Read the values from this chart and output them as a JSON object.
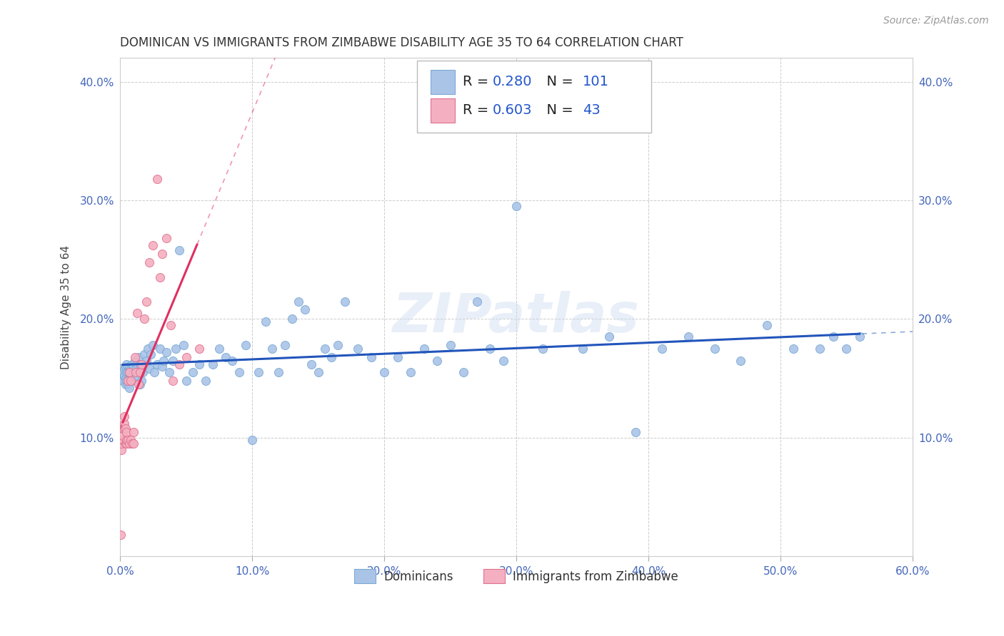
{
  "title": "DOMINICAN VS IMMIGRANTS FROM ZIMBABWE DISABILITY AGE 35 TO 64 CORRELATION CHART",
  "source": "Source: ZipAtlas.com",
  "ylabel": "Disability Age 35 to 64",
  "xlim": [
    0.0,
    0.6
  ],
  "ylim": [
    0.0,
    0.42
  ],
  "xticks": [
    0.0,
    0.1,
    0.2,
    0.3,
    0.4,
    0.5,
    0.6
  ],
  "yticks": [
    0.0,
    0.1,
    0.2,
    0.3,
    0.4
  ],
  "xticklabels": [
    "0.0%",
    "10.0%",
    "20.0%",
    "30.0%",
    "40.0%",
    "50.0%",
    "60.0%"
  ],
  "yticklabels": [
    "",
    "10.0%",
    "20.0%",
    "30.0%",
    "40.0%"
  ],
  "series": [
    {
      "name": "Dominicans",
      "R": 0.28,
      "N": 101,
      "color": "#aac4e8",
      "edge_color": "#7aaad4",
      "trend_color": "#2255bb",
      "x": [
        0.001,
        0.002,
        0.002,
        0.003,
        0.003,
        0.004,
        0.004,
        0.004,
        0.005,
        0.005,
        0.005,
        0.006,
        0.006,
        0.007,
        0.007,
        0.007,
        0.008,
        0.008,
        0.009,
        0.009,
        0.01,
        0.01,
        0.011,
        0.011,
        0.012,
        0.013,
        0.014,
        0.015,
        0.015,
        0.016,
        0.017,
        0.018,
        0.019,
        0.02,
        0.021,
        0.022,
        0.023,
        0.025,
        0.026,
        0.028,
        0.03,
        0.032,
        0.033,
        0.035,
        0.037,
        0.04,
        0.042,
        0.045,
        0.048,
        0.05,
        0.055,
        0.06,
        0.065,
        0.07,
        0.075,
        0.08,
        0.085,
        0.09,
        0.095,
        0.1,
        0.105,
        0.11,
        0.115,
        0.12,
        0.125,
        0.13,
        0.135,
        0.14,
        0.145,
        0.15,
        0.155,
        0.16,
        0.165,
        0.17,
        0.18,
        0.19,
        0.2,
        0.21,
        0.22,
        0.23,
        0.24,
        0.25,
        0.26,
        0.27,
        0.28,
        0.29,
        0.3,
        0.32,
        0.35,
        0.37,
        0.39,
        0.41,
        0.43,
        0.45,
        0.47,
        0.49,
        0.51,
        0.53,
        0.54,
        0.55,
        0.56
      ],
      "y": [
        0.15,
        0.148,
        0.155,
        0.152,
        0.158,
        0.145,
        0.15,
        0.16,
        0.148,
        0.155,
        0.162,
        0.145,
        0.155,
        0.142,
        0.155,
        0.16,
        0.148,
        0.158,
        0.148,
        0.162,
        0.155,
        0.16,
        0.152,
        0.165,
        0.158,
        0.162,
        0.168,
        0.145,
        0.162,
        0.148,
        0.155,
        0.17,
        0.162,
        0.165,
        0.175,
        0.158,
        0.17,
        0.178,
        0.155,
        0.162,
        0.175,
        0.16,
        0.165,
        0.172,
        0.155,
        0.165,
        0.175,
        0.258,
        0.178,
        0.148,
        0.155,
        0.162,
        0.148,
        0.162,
        0.175,
        0.168,
        0.165,
        0.155,
        0.178,
        0.098,
        0.155,
        0.198,
        0.175,
        0.155,
        0.178,
        0.2,
        0.215,
        0.208,
        0.162,
        0.155,
        0.175,
        0.168,
        0.178,
        0.215,
        0.175,
        0.168,
        0.155,
        0.168,
        0.155,
        0.175,
        0.165,
        0.178,
        0.155,
        0.215,
        0.175,
        0.165,
        0.295,
        0.175,
        0.175,
        0.185,
        0.105,
        0.175,
        0.185,
        0.175,
        0.165,
        0.195,
        0.175,
        0.175,
        0.185,
        0.175,
        0.185
      ]
    },
    {
      "name": "Immigrants from Zimbabwe",
      "R": 0.603,
      "N": 43,
      "color": "#f4b0c0",
      "edge_color": "#e07090",
      "trend_color": "#e03060",
      "x": [
        0.0005,
        0.001,
        0.001,
        0.0015,
        0.002,
        0.002,
        0.002,
        0.003,
        0.003,
        0.003,
        0.004,
        0.004,
        0.005,
        0.005,
        0.005,
        0.006,
        0.006,
        0.007,
        0.007,
        0.008,
        0.008,
        0.009,
        0.01,
        0.01,
        0.011,
        0.012,
        0.013,
        0.014,
        0.015,
        0.016,
        0.018,
        0.02,
        0.022,
        0.025,
        0.028,
        0.03,
        0.032,
        0.035,
        0.038,
        0.04,
        0.045,
        0.05,
        0.06
      ],
      "y": [
        0.018,
        0.09,
        0.095,
        0.098,
        0.098,
        0.102,
        0.108,
        0.108,
        0.112,
        0.118,
        0.095,
        0.108,
        0.095,
        0.098,
        0.105,
        0.098,
        0.148,
        0.095,
        0.155,
        0.098,
        0.148,
        0.095,
        0.095,
        0.105,
        0.168,
        0.155,
        0.205,
        0.145,
        0.155,
        0.162,
        0.2,
        0.215,
        0.248,
        0.262,
        0.318,
        0.235,
        0.255,
        0.268,
        0.195,
        0.148,
        0.162,
        0.168,
        0.175
      ]
    }
  ],
  "background_color": "#ffffff",
  "grid_color": "#cccccc",
  "title_fontsize": 12,
  "axis_label_fontsize": 11,
  "tick_fontsize": 11,
  "legend_fontsize": 14,
  "marker_size": 75,
  "watermark": "ZIPatlas",
  "watermark_color": "#c8d8ee",
  "watermark_alpha": 0.4,
  "watermark_fontsize": 55
}
